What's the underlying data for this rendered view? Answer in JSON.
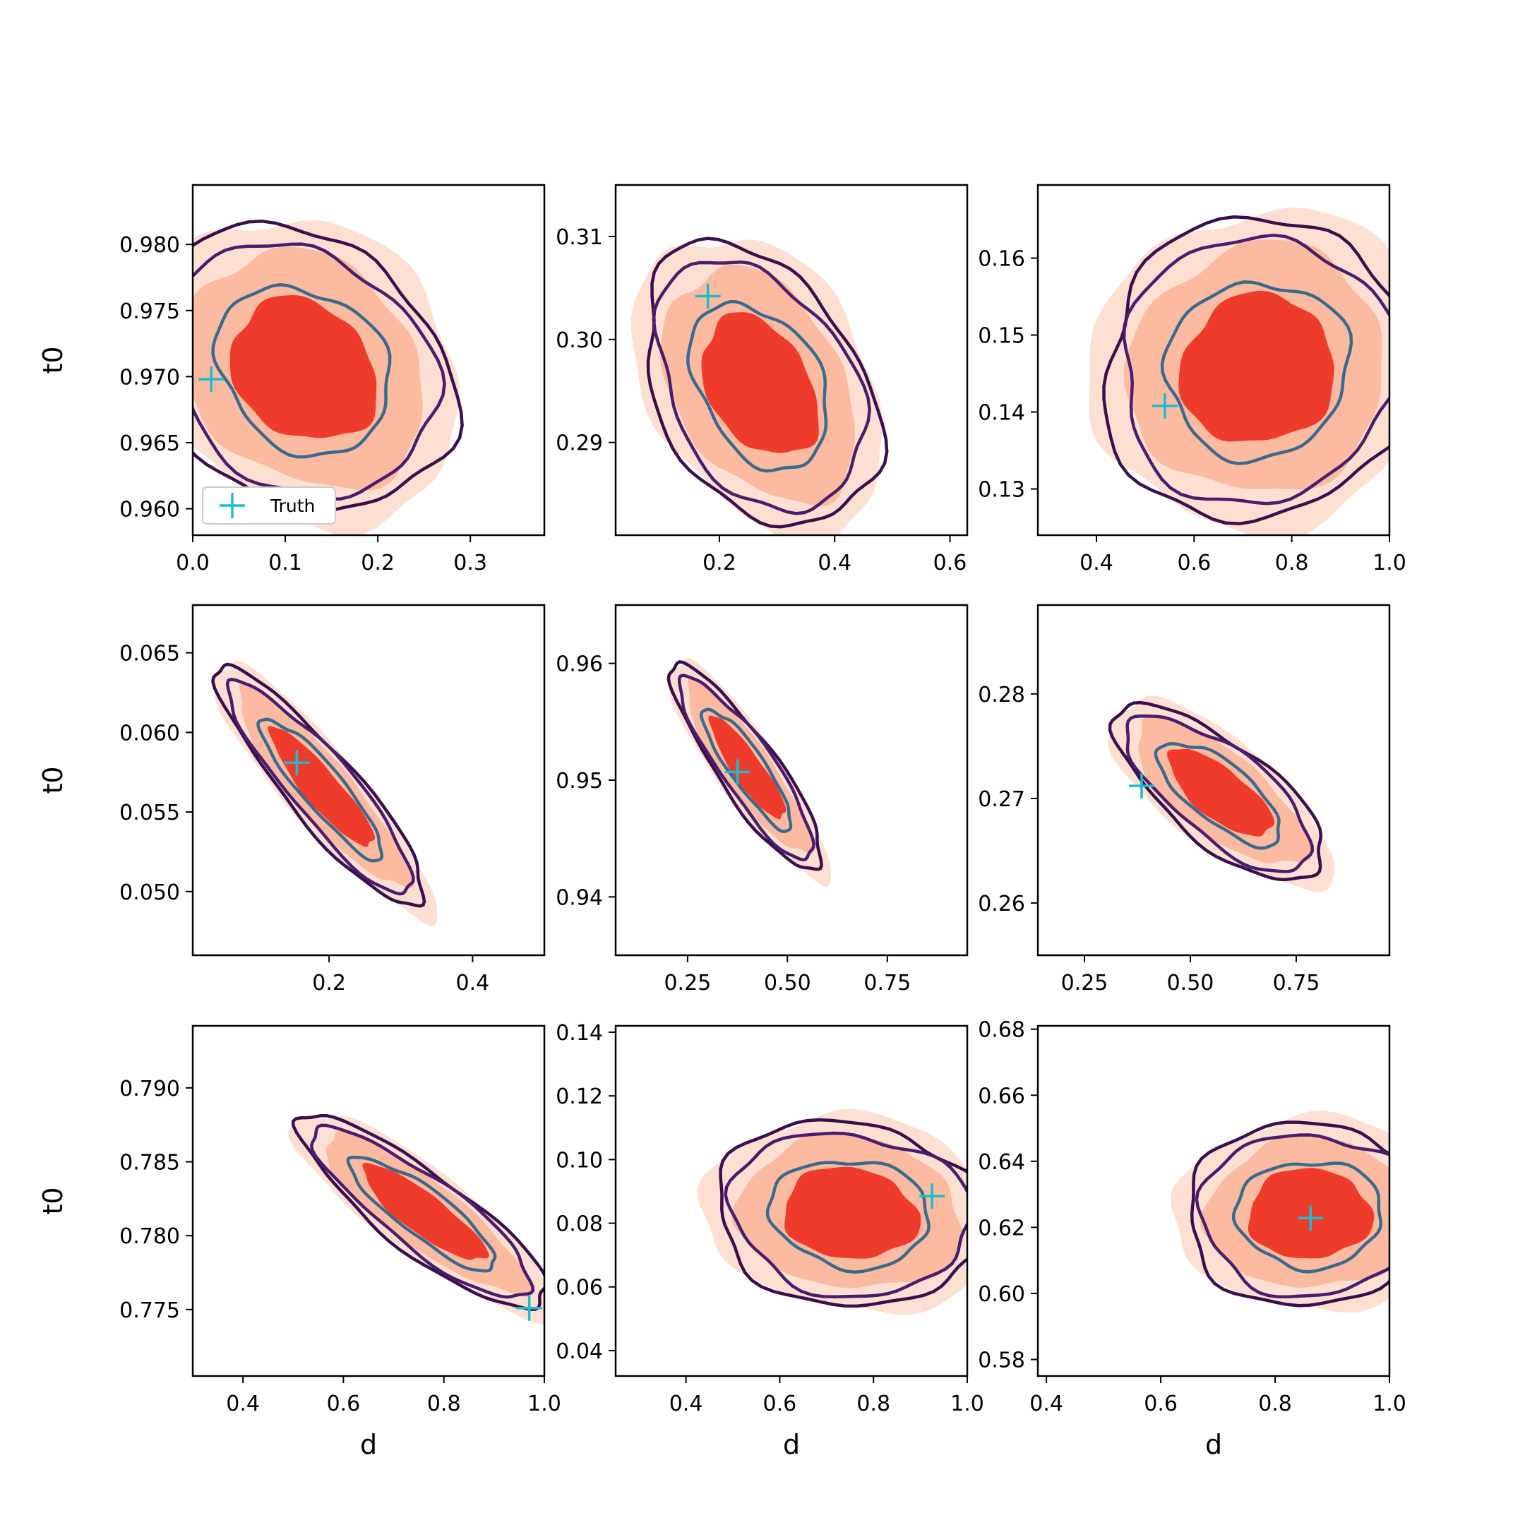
{
  "figure": {
    "legend": {
      "label": "Truth",
      "panel_index": 0,
      "placement": "lower-left"
    }
  },
  "colors": {
    "fill_outer": "#fee0d2",
    "fill_mid": "#fcbba1",
    "fill_core": "#ef3b2c",
    "contour_outer": "#3b0f4f",
    "contour_mid": "#4a1d6f",
    "contour_inner": "#3b6a8f",
    "truth_marker": "#17becf",
    "frame": "#000000"
  },
  "chart_data": [
    {
      "type": "contour",
      "panel": "row1-col1",
      "xlabel": "",
      "ylabel": "t0",
      "xlim": [
        0.0,
        0.38
      ],
      "ylim": [
        0.958,
        0.9845
      ],
      "xticks": [
        0.0,
        0.1,
        0.2,
        0.3
      ],
      "xtick_labels": [
        "0.0",
        "0.1",
        "0.2",
        "0.3"
      ],
      "yticks": [
        0.96,
        0.965,
        0.97,
        0.975,
        0.98
      ],
      "ytick_labels": [
        "0.960",
        "0.965",
        "0.970",
        "0.975",
        "0.980"
      ],
      "center": [
        0.12,
        0.9705
      ],
      "spread": [
        0.11,
        0.0075
      ],
      "corr": -0.2,
      "truth": [
        0.02,
        0.9698
      ]
    },
    {
      "type": "contour",
      "panel": "row1-col2",
      "xlabel": "",
      "ylabel": "",
      "xlim": [
        0.02,
        0.63
      ],
      "ylim": [
        0.281,
        0.315
      ],
      "xticks": [
        0.2,
        0.4,
        0.6
      ],
      "xtick_labels": [
        "0.2",
        "0.4",
        "0.6"
      ],
      "yticks": [
        0.29,
        0.3,
        0.31
      ],
      "ytick_labels": [
        "0.29",
        "0.30",
        "0.31"
      ],
      "center": [
        0.27,
        0.2955
      ],
      "spread": [
        0.14,
        0.0095
      ],
      "corr": -0.35,
      "truth": [
        0.18,
        0.3042
      ]
    },
    {
      "type": "contour",
      "panel": "row1-col3",
      "xlabel": "",
      "ylabel": "",
      "xlim": [
        0.28,
        1.0
      ],
      "ylim": [
        0.124,
        0.1695
      ],
      "xticks": [
        0.4,
        0.6,
        0.8,
        1.0
      ],
      "xtick_labels": [
        "0.4",
        "0.6",
        "0.8",
        "1.0"
      ],
      "yticks": [
        0.13,
        0.14,
        0.15,
        0.16
      ],
      "ytick_labels": [
        "0.13",
        "0.14",
        "0.15",
        "0.16"
      ],
      "center": [
        0.73,
        0.1455
      ],
      "spread": [
        0.22,
        0.0135
      ],
      "corr": 0.05,
      "truth": [
        0.54,
        0.1408
      ]
    },
    {
      "type": "contour",
      "panel": "row2-col1",
      "xlabel": "",
      "ylabel": "t0",
      "xlim": [
        0.01,
        0.5
      ],
      "ylim": [
        0.046,
        0.068
      ],
      "xticks": [
        0.2,
        0.4
      ],
      "xtick_labels": [
        "0.2",
        "0.4"
      ],
      "yticks": [
        0.05,
        0.055,
        0.06,
        0.065
      ],
      "ytick_labels": [
        "0.050",
        "0.055",
        "0.060",
        "0.065"
      ],
      "center": [
        0.19,
        0.0565
      ],
      "spread": [
        0.1,
        0.0052
      ],
      "corr": -0.9,
      "truth": [
        0.155,
        0.0581
      ]
    },
    {
      "type": "contour",
      "panel": "row2-col2",
      "xlabel": "",
      "ylabel": "",
      "xlim": [
        0.07,
        0.95
      ],
      "ylim": [
        0.935,
        0.965
      ],
      "xticks": [
        0.25,
        0.5,
        0.75
      ],
      "xtick_labels": [
        "0.25",
        "0.50",
        "0.75"
      ],
      "yticks": [
        0.94,
        0.95,
        0.96
      ],
      "ytick_labels": [
        "0.94",
        "0.95",
        "0.96"
      ],
      "center": [
        0.4,
        0.951
      ],
      "spread": [
        0.13,
        0.0061
      ],
      "corr": -0.88,
      "truth": [
        0.375,
        0.9507
      ]
    },
    {
      "type": "contour",
      "panel": "row2-col3",
      "xlabel": "",
      "ylabel": "",
      "xlim": [
        0.14,
        0.97
      ],
      "ylim": [
        0.255,
        0.2885
      ],
      "xticks": [
        0.25,
        0.5,
        0.75
      ],
      "xtick_labels": [
        "0.25",
        "0.50",
        "0.75"
      ],
      "yticks": [
        0.26,
        0.27,
        0.28
      ],
      "ytick_labels": [
        "0.26",
        "0.27",
        "0.28"
      ],
      "center": [
        0.57,
        0.2705
      ],
      "spread": [
        0.17,
        0.0058
      ],
      "corr": -0.72,
      "truth": [
        0.385,
        0.2712
      ]
    },
    {
      "type": "contour",
      "panel": "row3-col1",
      "xlabel": "d",
      "ylabel": "t0",
      "xlim": [
        0.3,
        1.0
      ],
      "ylim": [
        0.7705,
        0.7942
      ],
      "xticks": [
        0.4,
        0.6,
        0.8,
        1.0
      ],
      "xtick_labels": [
        "0.4",
        "0.6",
        "0.8",
        "1.0"
      ],
      "yticks": [
        0.775,
        0.78,
        0.785,
        0.79
      ],
      "ytick_labels": [
        "0.775",
        "0.780",
        "0.785",
        "0.790"
      ],
      "center": [
        0.76,
        0.7815
      ],
      "spread": [
        0.17,
        0.0045
      ],
      "corr": -0.86,
      "truth": [
        0.97,
        0.7751
      ]
    },
    {
      "type": "contour",
      "panel": "row3-col2",
      "xlabel": "d",
      "ylabel": "",
      "ytick_top_offset": true,
      "xlim": [
        0.25,
        1.0
      ],
      "ylim": [
        0.032,
        0.142
      ],
      "xticks": [
        0.4,
        0.6,
        0.8,
        1.0
      ],
      "xtick_labels": [
        "0.4",
        "0.6",
        "0.8",
        "1.0"
      ],
      "yticks": [
        0.04,
        0.06,
        0.08,
        0.1,
        0.12,
        0.14
      ],
      "ytick_labels": [
        "0.04",
        "0.06",
        "0.08",
        "0.10",
        "0.12",
        "0.14"
      ],
      "center": [
        0.75,
        0.083
      ],
      "spread": [
        0.2,
        0.02
      ],
      "corr": -0.1,
      "truth": [
        0.925,
        0.0885
      ]
    },
    {
      "type": "contour",
      "panel": "row3-col3",
      "xlabel": "d",
      "ylabel": "",
      "ytick_top_offset": true,
      "xlim": [
        0.385,
        1.0
      ],
      "ylim": [
        0.575,
        0.681
      ],
      "xticks": [
        0.4,
        0.6,
        0.8,
        1.0
      ],
      "xtick_labels": [
        "0.4",
        "0.6",
        "0.8",
        "1.0"
      ],
      "yticks": [
        0.58,
        0.6,
        0.62,
        0.64,
        0.66,
        0.68
      ],
      "ytick_labels": [
        "0.58",
        "0.60",
        "0.62",
        "0.64",
        "0.66",
        "0.68"
      ],
      "center": [
        0.86,
        0.624
      ],
      "spread": [
        0.15,
        0.019
      ],
      "corr": 0.0,
      "truth": [
        0.862,
        0.6228
      ]
    }
  ]
}
